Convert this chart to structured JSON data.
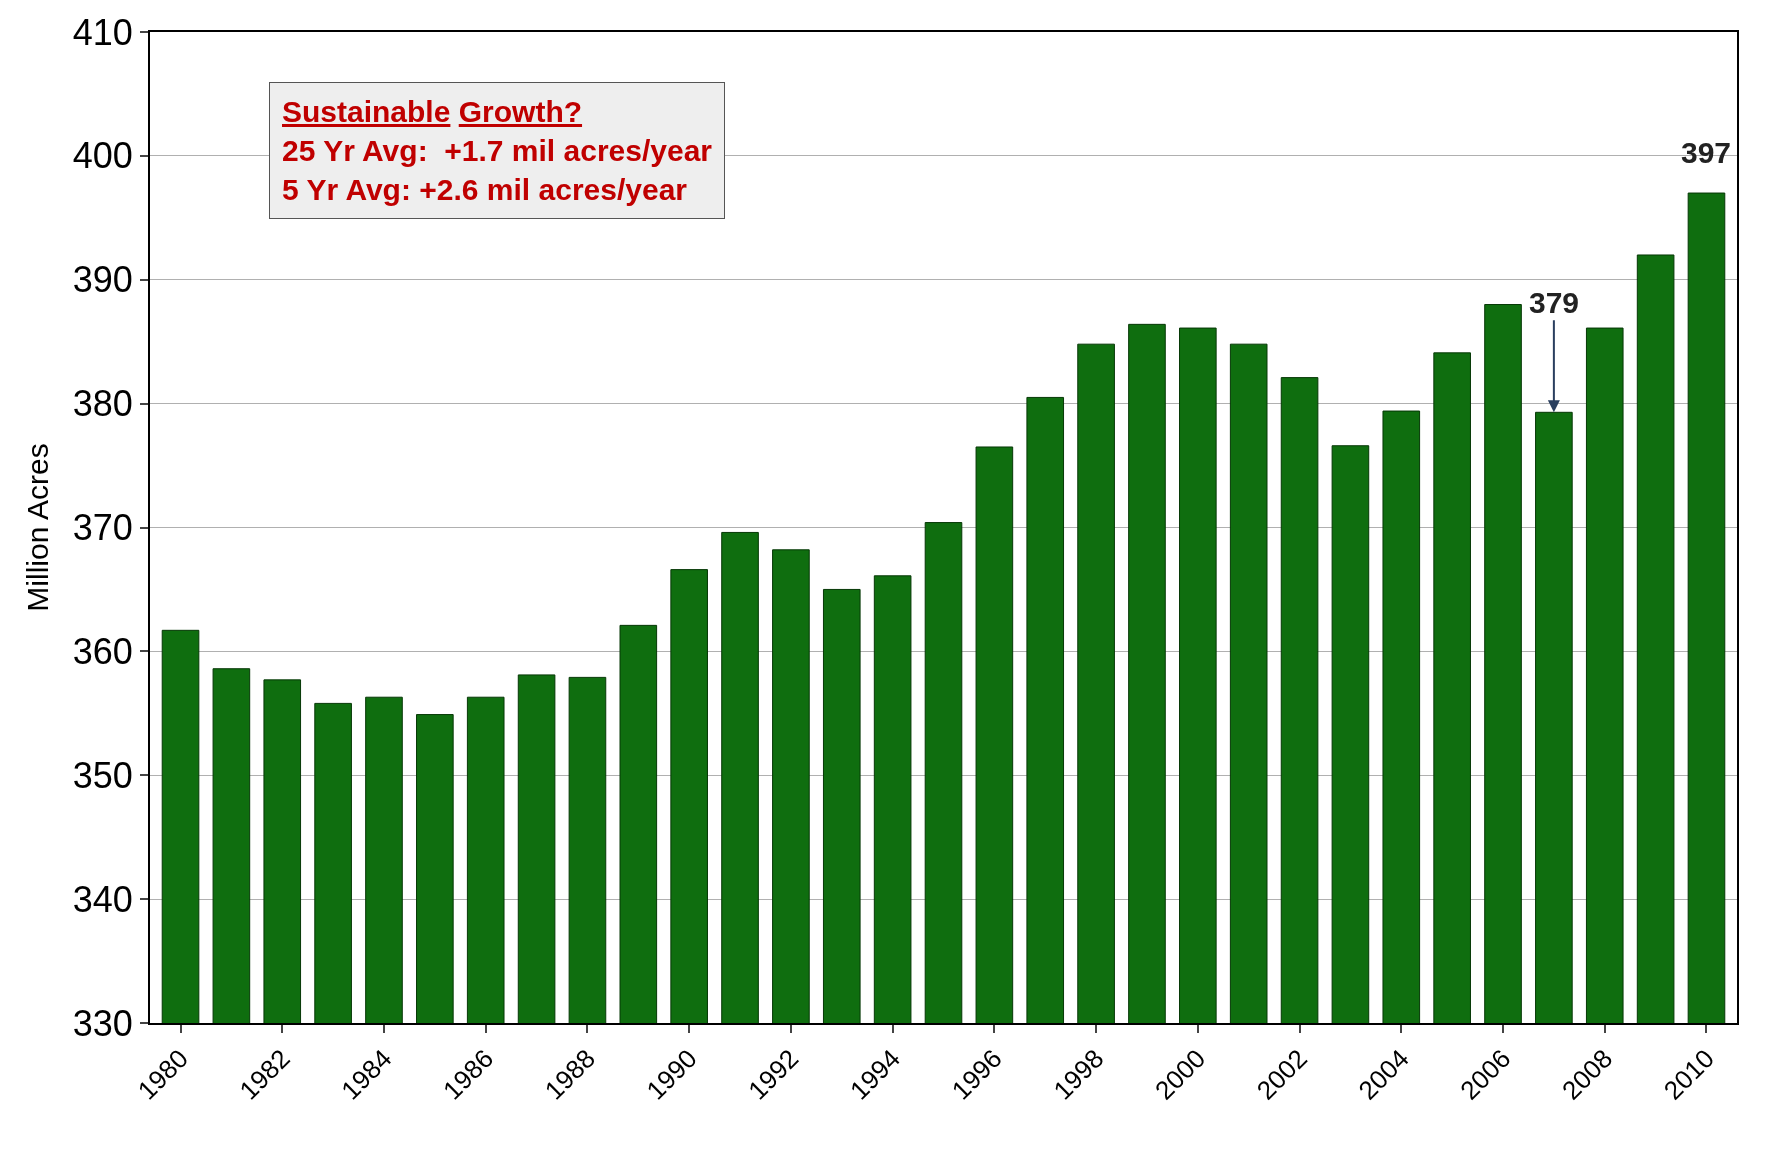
{
  "chart_data": {
    "type": "bar",
    "ylabel": "Million Acres",
    "x": [
      1980,
      1981,
      1982,
      1983,
      1984,
      1985,
      1986,
      1987,
      1988,
      1989,
      1990,
      1991,
      1992,
      1993,
      1994,
      1995,
      1996,
      1997,
      1998,
      1999,
      2000,
      2001,
      2002,
      2003,
      2004,
      2005,
      2006,
      2007,
      2008,
      2009,
      2010
    ],
    "values": [
      361.7,
      358.6,
      357.7,
      355.8,
      356.3,
      354.9,
      356.3,
      358.1,
      357.9,
      362.1,
      366.6,
      369.6,
      368.2,
      365.0,
      366.1,
      370.4,
      376.5,
      380.5,
      384.8,
      386.4,
      386.1,
      384.8,
      382.1,
      376.6,
      379.4,
      384.1,
      388.0,
      379.3,
      386.1,
      392.0,
      397.0
    ],
    "color": "#0f6e0f",
    "xlim": [
      1979.4,
      2010.6
    ],
    "xticks": [
      1980,
      1982,
      1984,
      1986,
      1988,
      1990,
      1992,
      1994,
      1996,
      1998,
      2000,
      2002,
      2004,
      2006,
      2008,
      2010
    ],
    "ylim": [
      330,
      410
    ],
    "yticks": [
      330,
      340,
      350,
      360,
      370,
      380,
      390,
      400,
      410
    ],
    "grid": "y",
    "annotations": [
      "Sustainable Growth?",
      "25 Yr Avg:  +1.7 mil acres/year",
      "5 Yr Avg: +2.6 mil acres/year",
      {
        "text": "379",
        "x": 2007,
        "y": 379.3
      },
      {
        "text": "397",
        "x": 2010,
        "y": 397.0
      }
    ]
  }
}
